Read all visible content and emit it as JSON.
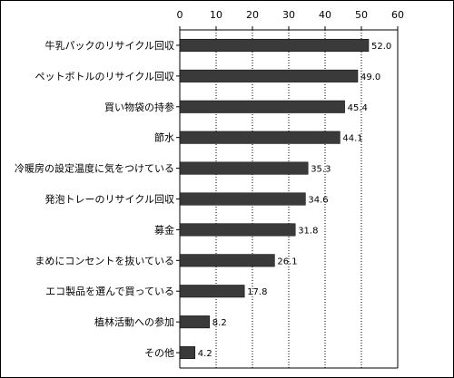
{
  "chart_data": {
    "type": "bar",
    "orientation": "horizontal",
    "categories": [
      "牛乳パックのリサイクル回収",
      "ペットボトルのリサイクル回収",
      "買い物袋の持参",
      "節水",
      "冷暖房の設定温度に気をつけている",
      "発泡トレーのリサイクル回収",
      "募金",
      "まめにコンセントを抜いている",
      "エコ製品を選んで買っている",
      "植林活動への参加",
      "その他"
    ],
    "values": [
      52.0,
      49.0,
      45.4,
      44.1,
      35.3,
      34.6,
      31.8,
      26.1,
      17.8,
      8.2,
      4.2
    ],
    "value_labels": [
      "52.0",
      "49.0",
      "45.4",
      "44.1",
      "35.3",
      "34.6",
      "31.8",
      "26.1",
      "17.8",
      "8.2",
      "4.2"
    ],
    "xlim": [
      0,
      60
    ],
    "x_ticks": [
      "0",
      "10",
      "20",
      "30",
      "40",
      "50",
      "60"
    ],
    "axis_position": "top",
    "grid": true,
    "colors": {
      "bar": "#3a3a3a",
      "grid": "#000000"
    }
  }
}
